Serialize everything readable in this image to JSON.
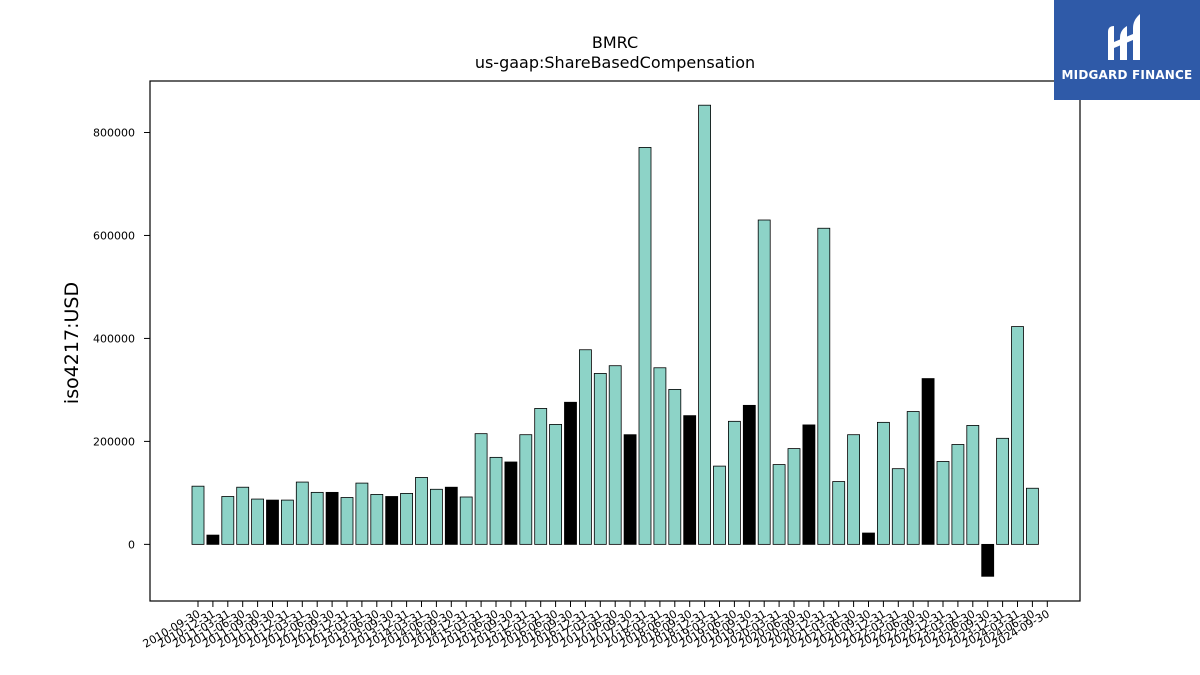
{
  "chart_data": {
    "type": "bar",
    "title": "BMRC",
    "subtitle": "us-gaap:ShareBasedCompensation",
    "ylabel": "iso4217:USD",
    "xlabel": "",
    "ylim": [
      -110000,
      900000
    ],
    "yticks": [
      0,
      200000,
      400000,
      600000,
      800000
    ],
    "grid": false,
    "colors": {
      "quarterly": "#8dd3c7",
      "annual": "#000000",
      "edge": "#000000"
    },
    "bars": [
      {
        "label": "2010-09-30",
        "value": 113000,
        "annual": false
      },
      {
        "label": "2010-12-31",
        "value": 18000,
        "annual": true
      },
      {
        "label": "2011-03-31",
        "value": 93000,
        "annual": false
      },
      {
        "label": "2011-06-30",
        "value": 111000,
        "annual": false
      },
      {
        "label": "2011-09-30",
        "value": 88000,
        "annual": false
      },
      {
        "label": "2011-09-30",
        "value": 86000,
        "annual": true
      },
      {
        "label": "2011-12-31",
        "value": 86000,
        "annual": false
      },
      {
        "label": "2012-03-31",
        "value": 121000,
        "annual": false
      },
      {
        "label": "2012-06-30",
        "value": 101000,
        "annual": false
      },
      {
        "label": "2012-09-30",
        "value": 101000,
        "annual": true
      },
      {
        "label": "2012-12-31",
        "value": 91000,
        "annual": false
      },
      {
        "label": "2013-03-31",
        "value": 119000,
        "annual": false
      },
      {
        "label": "2013-06-30",
        "value": 97000,
        "annual": false
      },
      {
        "label": "2013-09-30",
        "value": 93000,
        "annual": true
      },
      {
        "label": "2013-12-31",
        "value": 99000,
        "annual": false
      },
      {
        "label": "2014-03-31",
        "value": 130000,
        "annual": false
      },
      {
        "label": "2014-06-30",
        "value": 107000,
        "annual": false
      },
      {
        "label": "2014-09-30",
        "value": 111000,
        "annual": true
      },
      {
        "label": "2014-12-31",
        "value": 92000,
        "annual": false
      },
      {
        "label": "2015-03-31",
        "value": 215000,
        "annual": false
      },
      {
        "label": "2015-06-30",
        "value": 169000,
        "annual": false
      },
      {
        "label": "2015-09-30",
        "value": 160000,
        "annual": true
      },
      {
        "label": "2015-12-31",
        "value": 213000,
        "annual": false
      },
      {
        "label": "2016-03-31",
        "value": 264000,
        "annual": false
      },
      {
        "label": "2016-06-30",
        "value": 233000,
        "annual": false
      },
      {
        "label": "2016-09-30",
        "value": 276000,
        "annual": true
      },
      {
        "label": "2016-12-31",
        "value": 378000,
        "annual": false
      },
      {
        "label": "2017-03-31",
        "value": 332000,
        "annual": false
      },
      {
        "label": "2017-06-30",
        "value": 347000,
        "annual": false
      },
      {
        "label": "2017-09-30",
        "value": 213000,
        "annual": true
      },
      {
        "label": "2017-12-31",
        "value": 771000,
        "annual": false
      },
      {
        "label": "2018-03-31",
        "value": 343000,
        "annual": false
      },
      {
        "label": "2018-06-30",
        "value": 301000,
        "annual": false
      },
      {
        "label": "2018-09-30",
        "value": 250000,
        "annual": true
      },
      {
        "label": "2018-12-31",
        "value": 853000,
        "annual": false
      },
      {
        "label": "2019-03-31",
        "value": 152000,
        "annual": false
      },
      {
        "label": "2019-06-30",
        "value": 239000,
        "annual": false
      },
      {
        "label": "2019-09-30",
        "value": 270000,
        "annual": true
      },
      {
        "label": "2019-12-31",
        "value": 630000,
        "annual": false
      },
      {
        "label": "2020-03-31",
        "value": 155000,
        "annual": false
      },
      {
        "label": "2020-06-30",
        "value": 186000,
        "annual": false
      },
      {
        "label": "2020-09-30",
        "value": 232000,
        "annual": true
      },
      {
        "label": "2020-12-31",
        "value": 614000,
        "annual": false
      },
      {
        "label": "2021-03-31",
        "value": 122000,
        "annual": false
      },
      {
        "label": "2021-06-30",
        "value": 213000,
        "annual": false
      },
      {
        "label": "2021-09-30",
        "value": 22000,
        "annual": true
      },
      {
        "label": "2021-12-31",
        "value": 237000,
        "annual": false
      },
      {
        "label": "2022-03-31",
        "value": 147000,
        "annual": false
      },
      {
        "label": "2022-06-30",
        "value": 258000,
        "annual": false
      },
      {
        "label": "2022-09-30",
        "value": 322000,
        "annual": true
      },
      {
        "label": "2022-12-31",
        "value": 161000,
        "annual": false
      },
      {
        "label": "2023-03-31",
        "value": 194000,
        "annual": false
      },
      {
        "label": "2023-06-30",
        "value": 231000,
        "annual": false
      },
      {
        "label": "2023-09-30",
        "value": -62000,
        "annual": true
      },
      {
        "label": "2023-12-31",
        "value": 206000,
        "annual": false
      },
      {
        "label": "2024-03-31",
        "value": 423000,
        "annual": false
      },
      {
        "label": "2024-06-30",
        "value": 109000,
        "annual": false
      },
      {
        "label": "2024-09-30",
        "value": null,
        "annual": false
      }
    ]
  },
  "logo": {
    "text": "MIDGARD FINANCE",
    "background": "#2f5aa8"
  }
}
